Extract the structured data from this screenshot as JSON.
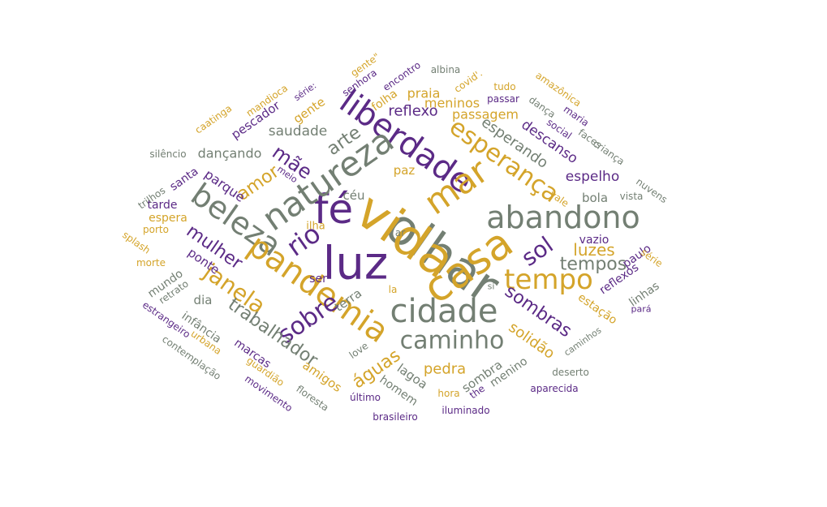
{
  "colors": {
    "gray": "#737f73",
    "purple": "#5b2a86",
    "gold": "#d4a42a"
  },
  "words": [
    {
      "text": "olhar",
      "color": "gray"
    },
    {
      "text": "vida",
      "color": "gold"
    },
    {
      "text": "luz",
      "color": "purple"
    },
    {
      "text": "fé",
      "color": "purple"
    },
    {
      "text": "casa",
      "color": "gold"
    },
    {
      "text": "liberdade",
      "color": "purple"
    },
    {
      "text": "mar",
      "color": "gold"
    },
    {
      "text": "natureza",
      "color": "gray"
    },
    {
      "text": "abandono",
      "color": "gray"
    },
    {
      "text": "beleza",
      "color": "gray"
    },
    {
      "text": "pandemia",
      "color": "gold"
    },
    {
      "text": "cidade",
      "color": "gray"
    },
    {
      "text": "esperança",
      "color": "gold"
    },
    {
      "text": "tempo",
      "color": "gold"
    },
    {
      "text": "rio",
      "color": "purple"
    },
    {
      "text": "sobre",
      "color": "purple"
    },
    {
      "text": "janela",
      "color": "gold"
    },
    {
      "text": "caminho",
      "color": "gray"
    },
    {
      "text": "trabalhador",
      "color": "gray"
    },
    {
      "text": "sol",
      "color": "purple"
    },
    {
      "text": "mãe",
      "color": "purple"
    },
    {
      "text": "sombras",
      "color": "purple"
    },
    {
      "text": "águas",
      "color": "gold"
    },
    {
      "text": "arte",
      "color": "gray"
    },
    {
      "text": "amor",
      "color": "gold"
    },
    {
      "text": "mulher",
      "color": "purple"
    },
    {
      "text": "tempos",
      "color": "gray"
    },
    {
      "text": "luzes",
      "color": "gold"
    },
    {
      "text": "esperando",
      "color": "gray"
    },
    {
      "text": "descanso",
      "color": "purple"
    },
    {
      "text": "reflexo",
      "color": "purple"
    },
    {
      "text": "saudade",
      "color": "gray"
    },
    {
      "text": "espelho",
      "color": "purple"
    },
    {
      "text": "pedra",
      "color": "gold"
    },
    {
      "text": "solidão",
      "color": "gold"
    },
    {
      "text": "meninos",
      "color": "gold"
    },
    {
      "text": "passagem",
      "color": "gold"
    },
    {
      "text": "praia",
      "color": "gold"
    },
    {
      "text": "parque",
      "color": "purple"
    },
    {
      "text": "dançando",
      "color": "gray"
    },
    {
      "text": "pescador",
      "color": "purple"
    },
    {
      "text": "gente",
      "color": "gold"
    },
    {
      "text": "folha",
      "color": "gold"
    },
    {
      "text": "paz",
      "color": "gold"
    },
    {
      "text": "céu",
      "color": "gray"
    },
    {
      "text": "bola",
      "color": "gray"
    },
    {
      "text": "vazio",
      "color": "purple"
    },
    {
      "text": "paulo",
      "color": "purple"
    },
    {
      "text": "reflexos",
      "color": "purple"
    },
    {
      "text": "linhas",
      "color": "gray"
    },
    {
      "text": "estação",
      "color": "gold"
    },
    {
      "text": "ponte",
      "color": "purple"
    },
    {
      "text": "terra",
      "color": "gray"
    },
    {
      "text": "ser",
      "color": "purple"
    },
    {
      "text": "dia",
      "color": "gray"
    },
    {
      "text": "mundo",
      "color": "gray"
    },
    {
      "text": "infância",
      "color": "gray"
    },
    {
      "text": "marcas",
      "color": "purple"
    },
    {
      "text": "amigos",
      "color": "gold"
    },
    {
      "text": "lagoa",
      "color": "gray"
    },
    {
      "text": "homem",
      "color": "gray"
    },
    {
      "text": "sombra",
      "color": "gray"
    },
    {
      "text": "menino",
      "color": "gray"
    },
    {
      "text": "tarde",
      "color": "purple"
    },
    {
      "text": "espera",
      "color": "gold"
    },
    {
      "text": "santa",
      "color": "purple"
    },
    {
      "text": "ilha",
      "color": "gold"
    },
    {
      "text": "ar",
      "color": "gray"
    },
    {
      "text": "la",
      "color": "gold"
    },
    {
      "text": "amazônica",
      "color": "gold"
    },
    {
      "text": "maria",
      "color": "purple"
    },
    {
      "text": "social",
      "color": "purple"
    },
    {
      "text": "dança",
      "color": "gray"
    },
    {
      "text": "faces",
      "color": "gray"
    },
    {
      "text": "criança",
      "color": "gray"
    },
    {
      "text": "nuvens",
      "color": "gray"
    },
    {
      "text": "vista",
      "color": "gray"
    },
    {
      "text": "vale",
      "color": "gold"
    },
    {
      "text": "série",
      "color": "gold"
    },
    {
      "text": "pará",
      "color": "purple"
    },
    {
      "text": "caminhos",
      "color": "gray"
    },
    {
      "text": "deserto",
      "color": "gray"
    },
    {
      "text": "aparecida",
      "color": "purple"
    },
    {
      "text": "iluminado",
      "color": "purple"
    },
    {
      "text": "brasileiro",
      "color": "purple"
    },
    {
      "text": "último",
      "color": "purple"
    },
    {
      "text": "the",
      "color": "purple"
    },
    {
      "text": "hora",
      "color": "gold"
    },
    {
      "text": "love",
      "color": "gray"
    },
    {
      "text": "floresta",
      "color": "gray"
    },
    {
      "text": "movimento",
      "color": "purple"
    },
    {
      "text": "guardião",
      "color": "gold"
    },
    {
      "text": "urbana",
      "color": "gold"
    },
    {
      "text": "contemplação",
      "color": "gray"
    },
    {
      "text": "estrangeiro",
      "color": "purple"
    },
    {
      "text": "retrato",
      "color": "gray"
    },
    {
      "text": "morte",
      "color": "gold"
    },
    {
      "text": "porto",
      "color": "gold"
    },
    {
      "text": "splash",
      "color": "gold"
    },
    {
      "text": "trilhos",
      "color": "gray"
    },
    {
      "text": "meio",
      "color": "purple"
    },
    {
      "text": "silêncio",
      "color": "gray"
    },
    {
      "text": "caatinga",
      "color": "gold"
    },
    {
      "text": "mandioca",
      "color": "gold"
    },
    {
      "text": "série:",
      "color": "purple"
    },
    {
      "text": "senhora",
      "color": "purple"
    },
    {
      "text": "gente\"",
      "color": "gold"
    },
    {
      "text": "encontro",
      "color": "purple"
    },
    {
      "text": "albina",
      "color": "gray"
    },
    {
      "text": "covid'.",
      "color": "gold"
    },
    {
      "text": "tudo",
      "color": "gold"
    },
    {
      "text": "passar",
      "color": "purple"
    },
    {
      "text": "si",
      "color": "gray"
    }
  ]
}
